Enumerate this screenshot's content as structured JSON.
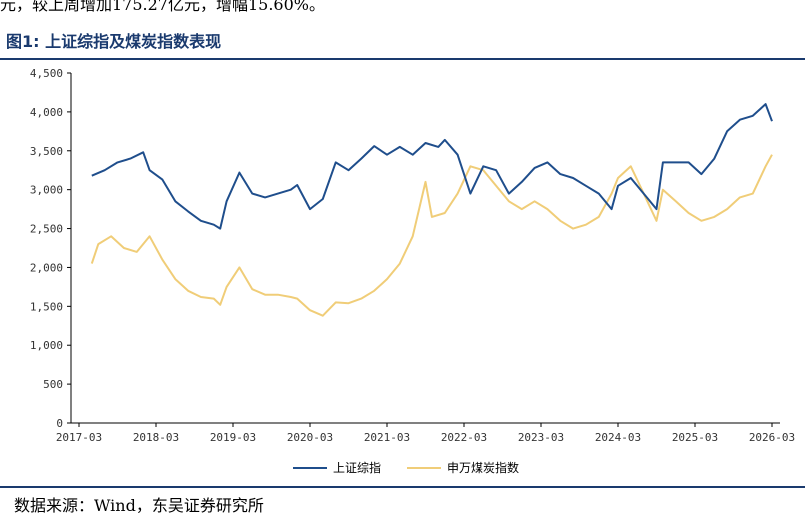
{
  "header": {
    "lead_text": "元，较上周增加175.27亿元，增幅15.60%。",
    "figure_title": "图1:  上证综指及煤炭指数表现"
  },
  "footer": {
    "source": "数据来源：Wind，东吴证券研究所"
  },
  "chart_data": {
    "type": "line",
    "title": "",
    "xlabel": "",
    "ylabel": "",
    "ylim": [
      0,
      4500
    ],
    "yticks": [
      0,
      500,
      1000,
      1500,
      2000,
      2500,
      3000,
      3500,
      4000,
      4500
    ],
    "ytick_labels": [
      "0",
      "500",
      "1,000",
      "1,500",
      "2,000",
      "2,500",
      "3,000",
      "3,500",
      "4,000",
      "4,500"
    ],
    "x_range": [
      "2017-03",
      "2026-03"
    ],
    "xtick_labels": [
      "2017-03",
      "2018-03",
      "2019-03",
      "2020-03",
      "2021-03",
      "2022-03",
      "2023-03",
      "2024-03",
      "2025-03",
      "2026-03"
    ],
    "grid": false,
    "legend_position": "bottom",
    "series": [
      {
        "name": "上证综指",
        "color": "#1f4e8c",
        "points": [
          [
            "2017-05",
            3180
          ],
          [
            "2017-07",
            3250
          ],
          [
            "2017-09",
            3350
          ],
          [
            "2017-11",
            3400
          ],
          [
            "2018-01",
            3480
          ],
          [
            "2018-02",
            3250
          ],
          [
            "2018-04",
            3130
          ],
          [
            "2018-06",
            2850
          ],
          [
            "2018-08",
            2720
          ],
          [
            "2018-10",
            2600
          ],
          [
            "2018-12",
            2550
          ],
          [
            "2019-01",
            2500
          ],
          [
            "2019-02",
            2850
          ],
          [
            "2019-04",
            3220
          ],
          [
            "2019-06",
            2950
          ],
          [
            "2019-08",
            2900
          ],
          [
            "2019-10",
            2950
          ],
          [
            "2019-12",
            3000
          ],
          [
            "2020-01",
            3060
          ],
          [
            "2020-03",
            2750
          ],
          [
            "2020-05",
            2880
          ],
          [
            "2020-07",
            3350
          ],
          [
            "2020-09",
            3250
          ],
          [
            "2020-11",
            3400
          ],
          [
            "2021-01",
            3560
          ],
          [
            "2021-03",
            3450
          ],
          [
            "2021-05",
            3550
          ],
          [
            "2021-07",
            3450
          ],
          [
            "2021-09",
            3600
          ],
          [
            "2021-11",
            3550
          ],
          [
            "2021-12",
            3640
          ],
          [
            "2022-02",
            3450
          ],
          [
            "2022-04",
            2950
          ],
          [
            "2022-06",
            3300
          ],
          [
            "2022-08",
            3250
          ],
          [
            "2022-10",
            2950
          ],
          [
            "2022-12",
            3100
          ],
          [
            "2023-02",
            3280
          ],
          [
            "2023-04",
            3350
          ],
          [
            "2023-06",
            3200
          ],
          [
            "2023-08",
            3150
          ],
          [
            "2023-10",
            3050
          ],
          [
            "2023-12",
            2950
          ],
          [
            "2024-02",
            2750
          ],
          [
            "2024-03",
            3050
          ],
          [
            "2024-05",
            3150
          ],
          [
            "2024-07",
            2950
          ],
          [
            "2024-09",
            2750
          ],
          [
            "2024-10",
            3350
          ],
          [
            "2024-12",
            3350
          ],
          [
            "2025-02",
            3350
          ],
          [
            "2025-04",
            3200
          ],
          [
            "2025-06",
            3400
          ],
          [
            "2025-08",
            3750
          ],
          [
            "2025-10",
            3900
          ],
          [
            "2025-12",
            3950
          ],
          [
            "2026-02",
            4100
          ],
          [
            "2026-03",
            3880
          ]
        ]
      },
      {
        "name": "申万煤炭指数",
        "color": "#f0cd78",
        "points": [
          [
            "2017-05",
            2050
          ],
          [
            "2017-06",
            2300
          ],
          [
            "2017-08",
            2400
          ],
          [
            "2017-10",
            2250
          ],
          [
            "2017-12",
            2200
          ],
          [
            "2018-02",
            2400
          ],
          [
            "2018-04",
            2100
          ],
          [
            "2018-06",
            1850
          ],
          [
            "2018-08",
            1700
          ],
          [
            "2018-10",
            1620
          ],
          [
            "2018-12",
            1600
          ],
          [
            "2019-01",
            1520
          ],
          [
            "2019-02",
            1750
          ],
          [
            "2019-04",
            2000
          ],
          [
            "2019-06",
            1720
          ],
          [
            "2019-08",
            1650
          ],
          [
            "2019-10",
            1650
          ],
          [
            "2019-12",
            1620
          ],
          [
            "2020-01",
            1600
          ],
          [
            "2020-03",
            1450
          ],
          [
            "2020-05",
            1380
          ],
          [
            "2020-07",
            1550
          ],
          [
            "2020-09",
            1540
          ],
          [
            "2020-11",
            1600
          ],
          [
            "2021-01",
            1700
          ],
          [
            "2021-03",
            1850
          ],
          [
            "2021-05",
            2050
          ],
          [
            "2021-07",
            2400
          ],
          [
            "2021-09",
            3100
          ],
          [
            "2021-10",
            2650
          ],
          [
            "2021-12",
            2700
          ],
          [
            "2022-02",
            2950
          ],
          [
            "2022-04",
            3300
          ],
          [
            "2022-06",
            3250
          ],
          [
            "2022-08",
            3050
          ],
          [
            "2022-10",
            2850
          ],
          [
            "2022-12",
            2750
          ],
          [
            "2023-02",
            2850
          ],
          [
            "2023-04",
            2750
          ],
          [
            "2023-06",
            2600
          ],
          [
            "2023-08",
            2500
          ],
          [
            "2023-10",
            2550
          ],
          [
            "2023-12",
            2650
          ],
          [
            "2024-02",
            2950
          ],
          [
            "2024-03",
            3150
          ],
          [
            "2024-05",
            3300
          ],
          [
            "2024-07",
            2950
          ],
          [
            "2024-09",
            2600
          ],
          [
            "2024-10",
            3000
          ],
          [
            "2024-12",
            2850
          ],
          [
            "2025-02",
            2700
          ],
          [
            "2025-04",
            2600
          ],
          [
            "2025-06",
            2650
          ],
          [
            "2025-08",
            2750
          ],
          [
            "2025-10",
            2900
          ],
          [
            "2025-12",
            2950
          ],
          [
            "2026-02",
            3300
          ],
          [
            "2026-03",
            3450
          ]
        ]
      }
    ]
  }
}
